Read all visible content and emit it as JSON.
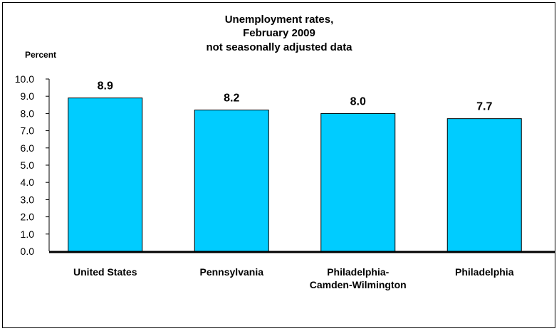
{
  "chart_data": {
    "type": "bar",
    "title": [
      "Unemployment rates,",
      "February 2009",
      "not seasonally adjusted data"
    ],
    "ylabel": "Percent",
    "xlabel": "",
    "ylim": [
      0,
      10
    ],
    "yticks": [
      "0.0",
      "1.0",
      "2.0",
      "3.0",
      "4.0",
      "5.0",
      "6.0",
      "7.0",
      "8.0",
      "9.0",
      "10.0"
    ],
    "categories": [
      [
        "United States"
      ],
      [
        "Pennsylvania"
      ],
      [
        "Philadelphia-",
        "Camden-Wilmington"
      ],
      [
        "Philadelphia"
      ]
    ],
    "values": [
      8.9,
      8.2,
      8.0,
      7.7
    ],
    "data_labels": [
      "8.9",
      "8.2",
      "8.0",
      "7.7"
    ],
    "bar_color": "#00CCFF",
    "bar_outline": "#000000",
    "grid": false,
    "legend": "none"
  }
}
